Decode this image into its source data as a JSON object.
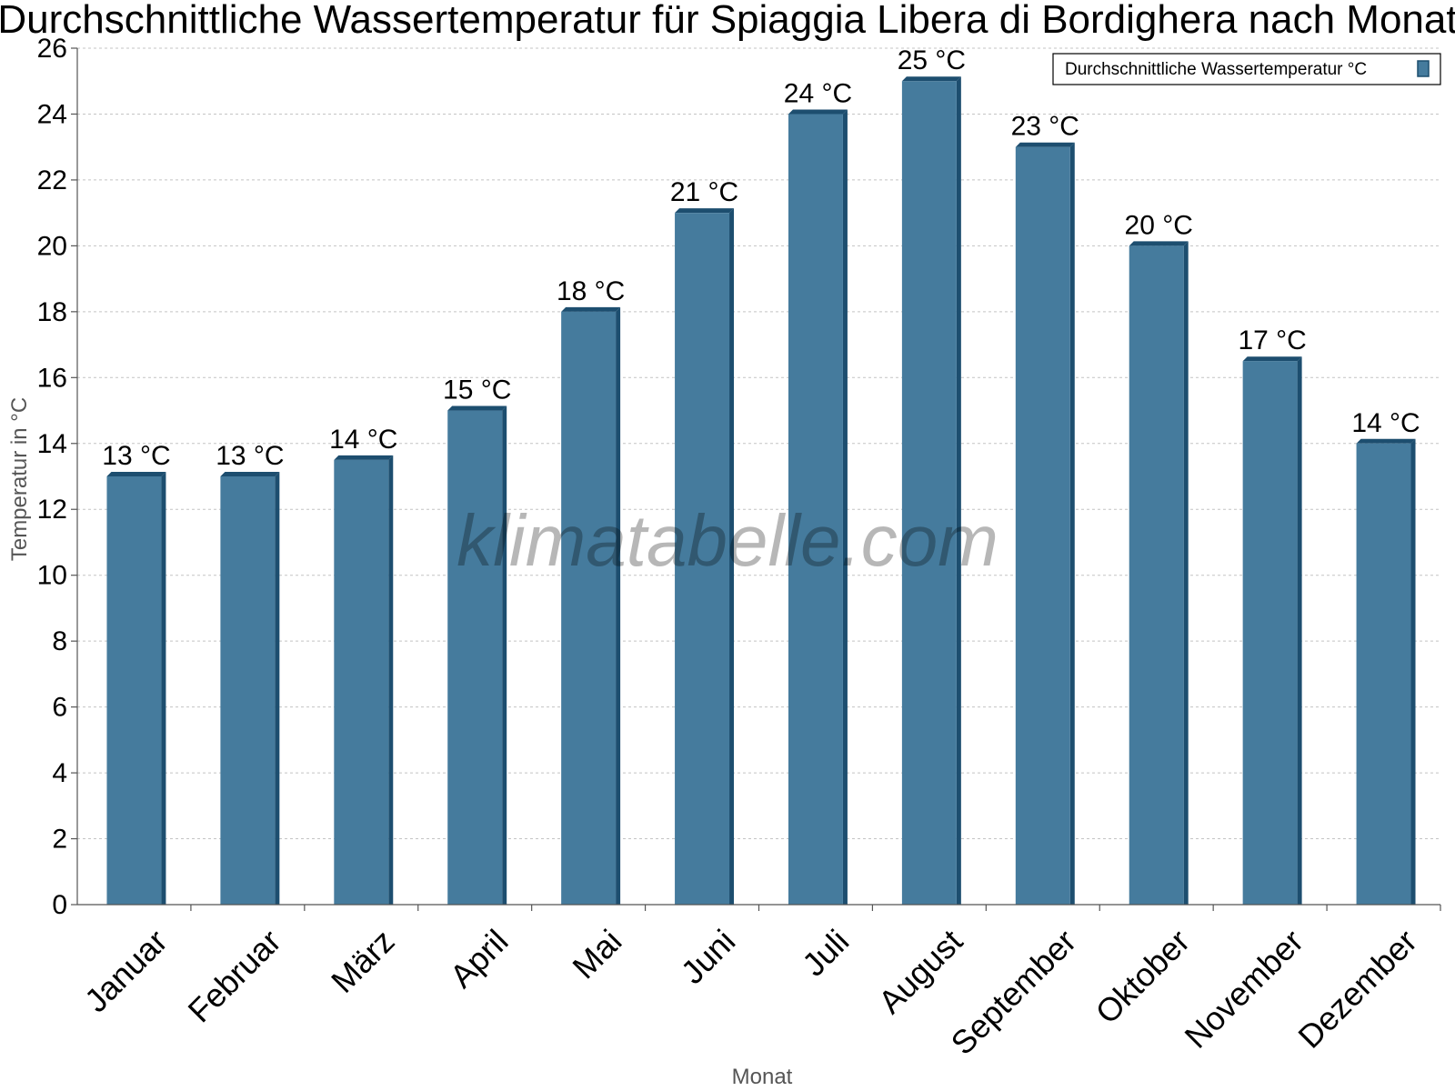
{
  "chart_data": {
    "type": "bar",
    "title": "Durchschnittliche Wassertemperatur für Spiaggia Libera di Bordighera nach Monat",
    "xlabel": "Monat",
    "ylabel": "Temperatur in °C",
    "ylim": [
      0,
      26
    ],
    "yticks": [
      "0",
      "2",
      "4",
      "6",
      "8",
      "10",
      "12",
      "14",
      "16",
      "18",
      "20",
      "22",
      "24",
      "26"
    ],
    "categories": [
      "Januar",
      "Februar",
      "März",
      "April",
      "Mai",
      "Juni",
      "Juli",
      "August",
      "September",
      "Oktober",
      "November",
      "Dezember"
    ],
    "series": [
      {
        "name": "Durchschnittliche Wassertemperatur °C",
        "values": [
          13,
          13,
          13.5,
          15,
          18,
          21,
          24,
          25,
          23,
          20,
          16.5,
          14
        ],
        "labels": [
          "13 °C",
          "13 °C",
          "14 °C",
          "15 °C",
          "18 °C",
          "21 °C",
          "24 °C",
          "25 °C",
          "23 °C",
          "20 °C",
          "17 °C",
          "14 °C"
        ],
        "color": "#457b9d",
        "edge_color": "#1d4e6f"
      }
    ],
    "grid": true,
    "legend_position": "top-right",
    "watermark": "klimatabelle.com"
  }
}
